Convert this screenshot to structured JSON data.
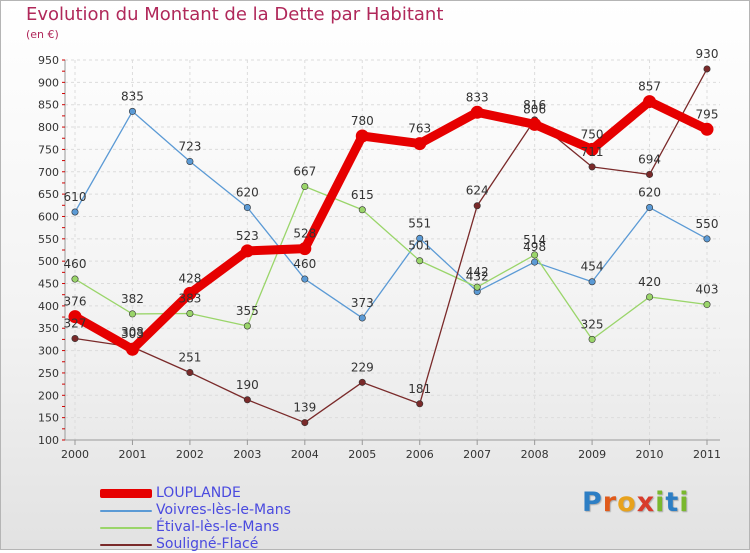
{
  "header": {
    "title": "Evolution du Montant de la Dette par Habitant",
    "subtitle": "(en €)"
  },
  "brand": {
    "letters": [
      "P",
      "r",
      "o",
      "x",
      "i",
      "t",
      "i"
    ],
    "colors": [
      "#2d7ec4",
      "#e05a1a",
      "#e8a21c",
      "#d83c2c",
      "#7ab82e",
      "#2d7ec4",
      "#7ab82e"
    ]
  },
  "chart_data": {
    "type": "line",
    "title": "Evolution du Montant de la Dette par Habitant",
    "ylabel": "(en €)",
    "xlabel": "",
    "x": [
      "2000",
      "2001",
      "2002",
      "2003",
      "2004",
      "2005",
      "2006",
      "2007",
      "2008",
      "2009",
      "2010",
      "2011"
    ],
    "ylim": [
      100,
      950
    ],
    "yticks": [
      100,
      150,
      200,
      250,
      300,
      350,
      400,
      450,
      500,
      550,
      600,
      650,
      700,
      750,
      800,
      850,
      900,
      950
    ],
    "grid": true,
    "legend_position": "bottom-left",
    "series": [
      {
        "name": "LOUPLANDE",
        "color": "#e60000",
        "emphasis": true,
        "values": [
          376,
          303,
          428,
          523,
          528,
          780,
          763,
          833,
          806,
          750,
          857,
          795
        ]
      },
      {
        "name": "Voivres-lès-le-Mans",
        "color": "#5b9ad5",
        "emphasis": false,
        "values": [
          610,
          835,
          723,
          620,
          460,
          373,
          551,
          432,
          498,
          454,
          620,
          550
        ]
      },
      {
        "name": "Étival-lès-le-Mans",
        "color": "#9ad56a",
        "emphasis": false,
        "values": [
          460,
          382,
          383,
          355,
          667,
          615,
          501,
          442,
          514,
          325,
          420,
          403
        ]
      },
      {
        "name": "Souligné-Flacé",
        "color": "#7a2a2a",
        "emphasis": false,
        "values": [
          327,
          308,
          251,
          190,
          139,
          229,
          181,
          624,
          816,
          711,
          694,
          930
        ]
      }
    ]
  }
}
